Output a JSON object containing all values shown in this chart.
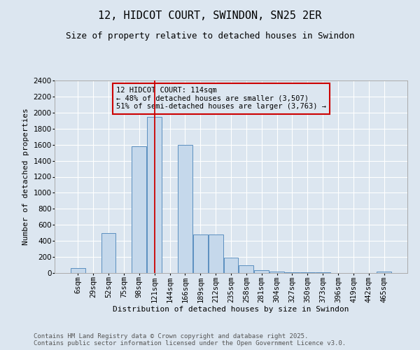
{
  "title": "12, HIDCOT COURT, SWINDON, SN25 2ER",
  "subtitle": "Size of property relative to detached houses in Swindon",
  "xlabel": "Distribution of detached houses by size in Swindon",
  "ylabel": "Number of detached properties",
  "background_color": "#dce6f0",
  "bar_color": "#c5d8eb",
  "bar_edge_color": "#5b8fbf",
  "grid_color": "#ffffff",
  "annotation_box_color": "#cc0000",
  "annotation_line_color": "#cc0000",
  "categories": [
    "6sqm",
    "29sqm",
    "52sqm",
    "75sqm",
    "98sqm",
    "121sqm",
    "144sqm",
    "166sqm",
    "189sqm",
    "212sqm",
    "235sqm",
    "258sqm",
    "281sqm",
    "304sqm",
    "327sqm",
    "350sqm",
    "373sqm",
    "396sqm",
    "419sqm",
    "442sqm",
    "465sqm"
  ],
  "values": [
    60,
    0,
    500,
    0,
    1580,
    1950,
    0,
    1600,
    480,
    480,
    195,
    95,
    35,
    20,
    10,
    8,
    5,
    3,
    2,
    0,
    18
  ],
  "ylim": [
    0,
    2400
  ],
  "yticks": [
    0,
    200,
    400,
    600,
    800,
    1000,
    1200,
    1400,
    1600,
    1800,
    2000,
    2200,
    2400
  ],
  "property_bar_index": 5,
  "annotation_text": "12 HIDCOT COURT: 114sqm\n← 48% of detached houses are smaller (3,507)\n51% of semi-detached houses are larger (3,763) →",
  "footer_line1": "Contains HM Land Registry data © Crown copyright and database right 2025.",
  "footer_line2": "Contains public sector information licensed under the Open Government Licence v3.0.",
  "title_fontsize": 11,
  "subtitle_fontsize": 9,
  "annotation_fontsize": 7.5,
  "axis_label_fontsize": 8,
  "tick_fontsize": 7.5,
  "footer_fontsize": 6.5
}
